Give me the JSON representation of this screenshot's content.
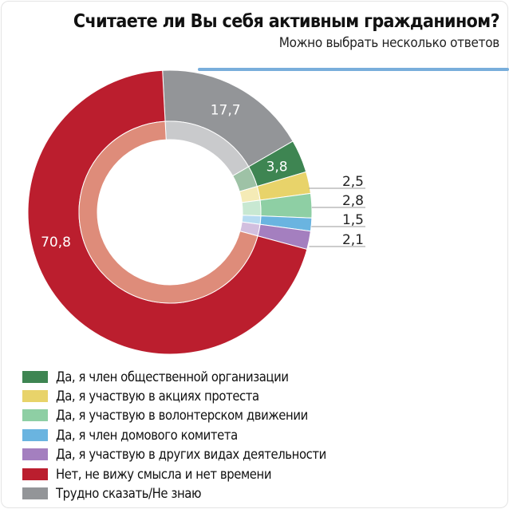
{
  "title": "Считаете ли Вы себя активным гражданином?",
  "subtitle": "Можно выбрать несколько ответов",
  "chart_data": {
    "type": "pie",
    "variant": "donut",
    "title": "Считаете ли Вы себя активным гражданином?",
    "subtitle": "Можно выбрать несколько ответов",
    "legend_position": "bottom",
    "slices": [
      {
        "label": "Трудно сказать/Не знаю",
        "value": 17.7,
        "value_label": "17,7",
        "color": "#939598",
        "light": "#c9cacc"
      },
      {
        "label": "Да, я член общественной организации",
        "value": 3.8,
        "value_label": "3,8",
        "color": "#3e8552",
        "light": "#9ec2a6"
      },
      {
        "label": "Да, я участвую в акциях протеста",
        "value": 2.5,
        "value_label": "2,5",
        "color": "#e8d36a",
        "light": "#f5ebb6"
      },
      {
        "label": "Да, я участвую в волонтерском движении",
        "value": 2.8,
        "value_label": "2,8",
        "color": "#8ecfa4",
        "light": "#c8e8d2"
      },
      {
        "label": "Да, я член домового комитета",
        "value": 1.5,
        "value_label": "1,5",
        "color": "#6ab4e0",
        "light": "#b6dbf1"
      },
      {
        "label": "Да, я участвую в других видах деятельности",
        "value": 2.1,
        "value_label": "2,1",
        "color": "#a47fbf",
        "light": "#d2bfdf"
      },
      {
        "label": "Нет, не вижу смысла и нет времени",
        "value": 70.8,
        "value_label": "70,8",
        "color": "#bb1e2e",
        "light": "#de8c7a"
      }
    ],
    "legend_order": [
      1,
      2,
      3,
      4,
      5,
      6,
      0
    ]
  }
}
